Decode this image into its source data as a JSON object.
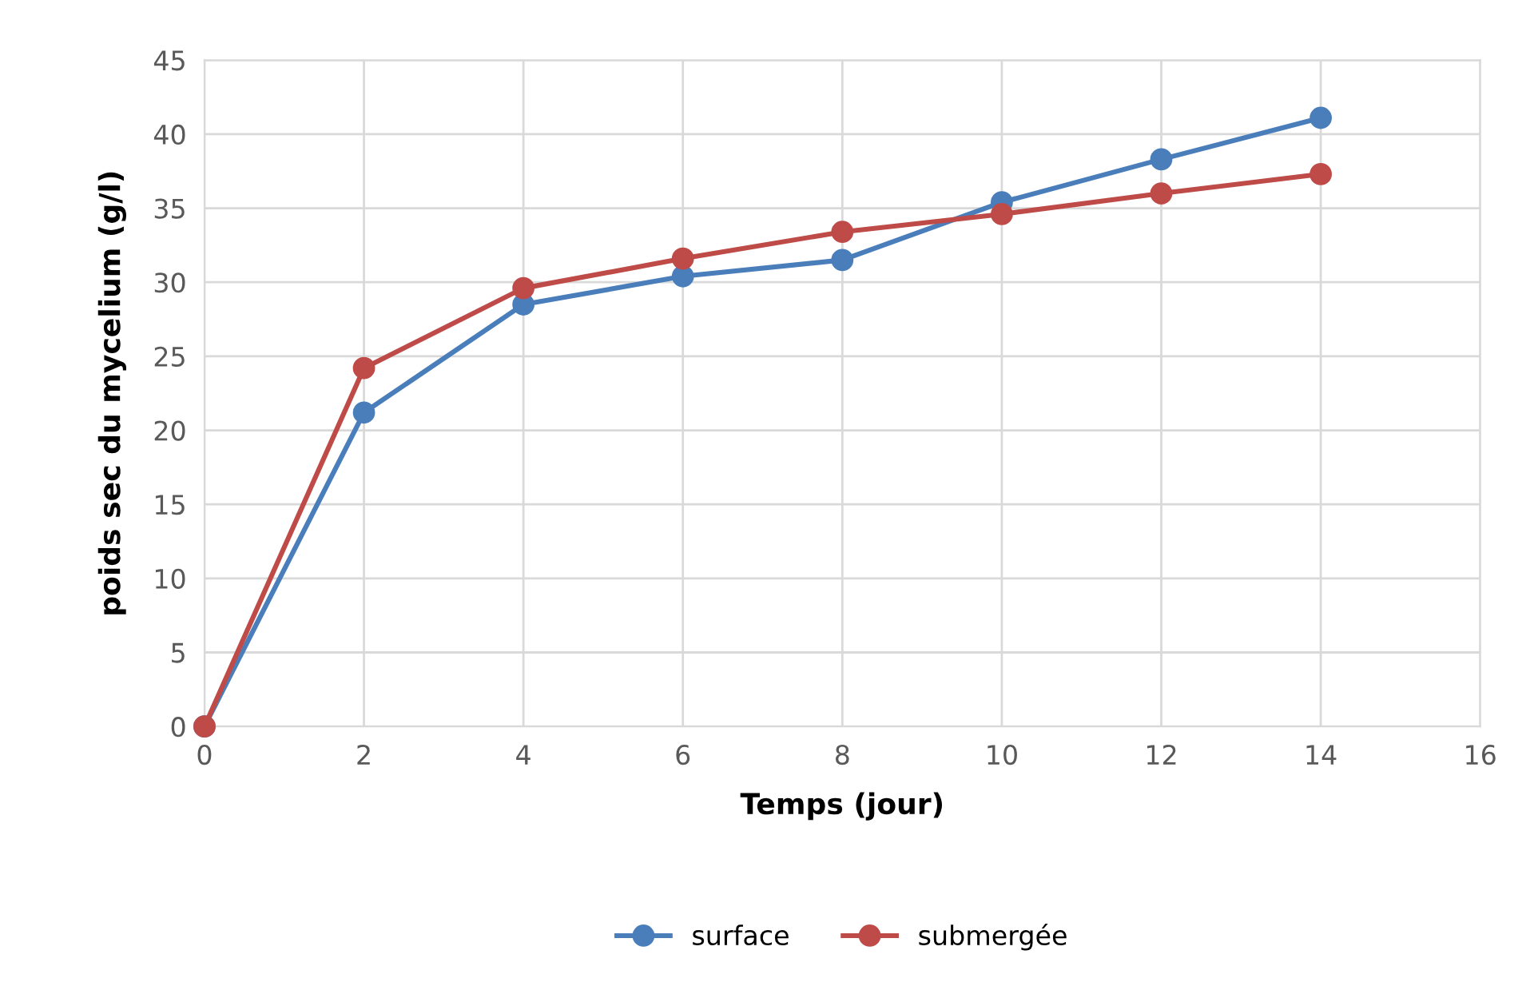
{
  "chart_data": {
    "type": "line",
    "xlabel": "Temps (jour)",
    "ylabel": "poids sec du mycelium (g/l)",
    "x": [
      0,
      2,
      4,
      6,
      8,
      10,
      12,
      14
    ],
    "series": [
      {
        "name": "surface",
        "color": "#4a7ebb",
        "values": [
          0,
          21.2,
          28.5,
          30.4,
          31.5,
          35.4,
          38.3,
          41.1
        ]
      },
      {
        "name": "submergée",
        "color": "#be4b48",
        "values": [
          0,
          24.2,
          29.6,
          31.6,
          33.4,
          34.6,
          36.0,
          37.3
        ]
      }
    ],
    "xlim": [
      0,
      16
    ],
    "xticks": [
      0,
      2,
      4,
      6,
      8,
      10,
      12,
      14,
      16
    ],
    "ylim": [
      0,
      45
    ],
    "yticks": [
      0,
      5,
      10,
      15,
      20,
      25,
      30,
      35,
      40,
      45
    ],
    "grid": true,
    "legend": "bottom",
    "marker": "circle",
    "line_style": "solid"
  }
}
